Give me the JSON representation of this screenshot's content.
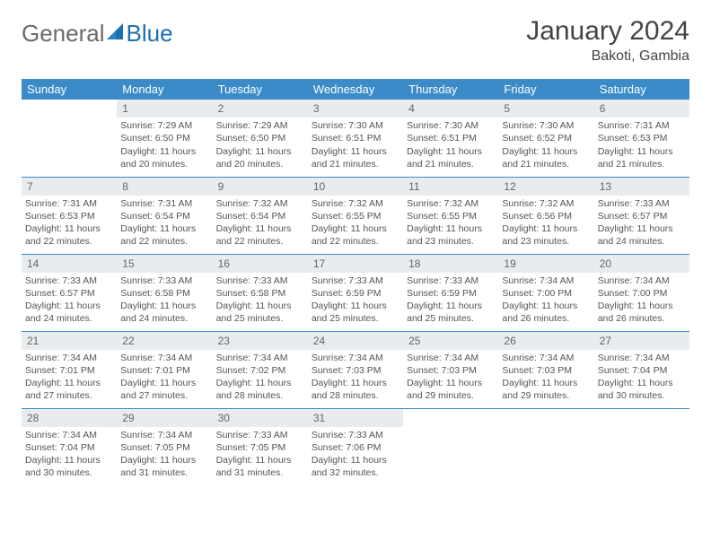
{
  "logo": {
    "word1": "General",
    "word2": "Blue"
  },
  "title": "January 2024",
  "location": "Bakoti, Gambia",
  "weekday_labels": [
    "Sunday",
    "Monday",
    "Tuesday",
    "Wednesday",
    "Thursday",
    "Friday",
    "Saturday"
  ],
  "colors": {
    "header_blue": "#3b8bc9",
    "daynum_bg": "#e8ecee",
    "text": "#555555",
    "title": "#444444",
    "logo_gray": "#6a6a6a",
    "logo_blue": "#1e6fb0",
    "background": "#ffffff"
  },
  "typography": {
    "title_fontsize_pt": 22,
    "location_fontsize_pt": 12,
    "weekday_fontsize_pt": 10,
    "cell_fontsize_pt": 8
  },
  "calendar": {
    "type": "table",
    "columns": 7,
    "rows": 5,
    "month_start_weekday": 1,
    "days": [
      {
        "n": 1,
        "sunrise": "7:29 AM",
        "sunset": "6:50 PM",
        "daylight": "11 hours and 20 minutes."
      },
      {
        "n": 2,
        "sunrise": "7:29 AM",
        "sunset": "6:50 PM",
        "daylight": "11 hours and 20 minutes."
      },
      {
        "n": 3,
        "sunrise": "7:30 AM",
        "sunset": "6:51 PM",
        "daylight": "11 hours and 21 minutes."
      },
      {
        "n": 4,
        "sunrise": "7:30 AM",
        "sunset": "6:51 PM",
        "daylight": "11 hours and 21 minutes."
      },
      {
        "n": 5,
        "sunrise": "7:30 AM",
        "sunset": "6:52 PM",
        "daylight": "11 hours and 21 minutes."
      },
      {
        "n": 6,
        "sunrise": "7:31 AM",
        "sunset": "6:53 PM",
        "daylight": "11 hours and 21 minutes."
      },
      {
        "n": 7,
        "sunrise": "7:31 AM",
        "sunset": "6:53 PM",
        "daylight": "11 hours and 22 minutes."
      },
      {
        "n": 8,
        "sunrise": "7:31 AM",
        "sunset": "6:54 PM",
        "daylight": "11 hours and 22 minutes."
      },
      {
        "n": 9,
        "sunrise": "7:32 AM",
        "sunset": "6:54 PM",
        "daylight": "11 hours and 22 minutes."
      },
      {
        "n": 10,
        "sunrise": "7:32 AM",
        "sunset": "6:55 PM",
        "daylight": "11 hours and 22 minutes."
      },
      {
        "n": 11,
        "sunrise": "7:32 AM",
        "sunset": "6:55 PM",
        "daylight": "11 hours and 23 minutes."
      },
      {
        "n": 12,
        "sunrise": "7:32 AM",
        "sunset": "6:56 PM",
        "daylight": "11 hours and 23 minutes."
      },
      {
        "n": 13,
        "sunrise": "7:33 AM",
        "sunset": "6:57 PM",
        "daylight": "11 hours and 24 minutes."
      },
      {
        "n": 14,
        "sunrise": "7:33 AM",
        "sunset": "6:57 PM",
        "daylight": "11 hours and 24 minutes."
      },
      {
        "n": 15,
        "sunrise": "7:33 AM",
        "sunset": "6:58 PM",
        "daylight": "11 hours and 24 minutes."
      },
      {
        "n": 16,
        "sunrise": "7:33 AM",
        "sunset": "6:58 PM",
        "daylight": "11 hours and 25 minutes."
      },
      {
        "n": 17,
        "sunrise": "7:33 AM",
        "sunset": "6:59 PM",
        "daylight": "11 hours and 25 minutes."
      },
      {
        "n": 18,
        "sunrise": "7:33 AM",
        "sunset": "6:59 PM",
        "daylight": "11 hours and 25 minutes."
      },
      {
        "n": 19,
        "sunrise": "7:34 AM",
        "sunset": "7:00 PM",
        "daylight": "11 hours and 26 minutes."
      },
      {
        "n": 20,
        "sunrise": "7:34 AM",
        "sunset": "7:00 PM",
        "daylight": "11 hours and 26 minutes."
      },
      {
        "n": 21,
        "sunrise": "7:34 AM",
        "sunset": "7:01 PM",
        "daylight": "11 hours and 27 minutes."
      },
      {
        "n": 22,
        "sunrise": "7:34 AM",
        "sunset": "7:01 PM",
        "daylight": "11 hours and 27 minutes."
      },
      {
        "n": 23,
        "sunrise": "7:34 AM",
        "sunset": "7:02 PM",
        "daylight": "11 hours and 28 minutes."
      },
      {
        "n": 24,
        "sunrise": "7:34 AM",
        "sunset": "7:03 PM",
        "daylight": "11 hours and 28 minutes."
      },
      {
        "n": 25,
        "sunrise": "7:34 AM",
        "sunset": "7:03 PM",
        "daylight": "11 hours and 29 minutes."
      },
      {
        "n": 26,
        "sunrise": "7:34 AM",
        "sunset": "7:03 PM",
        "daylight": "11 hours and 29 minutes."
      },
      {
        "n": 27,
        "sunrise": "7:34 AM",
        "sunset": "7:04 PM",
        "daylight": "11 hours and 30 minutes."
      },
      {
        "n": 28,
        "sunrise": "7:34 AM",
        "sunset": "7:04 PM",
        "daylight": "11 hours and 30 minutes."
      },
      {
        "n": 29,
        "sunrise": "7:34 AM",
        "sunset": "7:05 PM",
        "daylight": "11 hours and 31 minutes."
      },
      {
        "n": 30,
        "sunrise": "7:33 AM",
        "sunset": "7:05 PM",
        "daylight": "11 hours and 31 minutes."
      },
      {
        "n": 31,
        "sunrise": "7:33 AM",
        "sunset": "7:06 PM",
        "daylight": "11 hours and 32 minutes."
      }
    ],
    "labels": {
      "sunrise": "Sunrise:",
      "sunset": "Sunset:",
      "daylight": "Daylight:"
    }
  }
}
